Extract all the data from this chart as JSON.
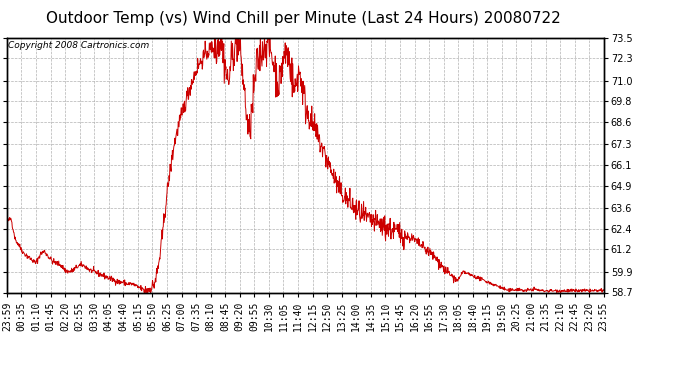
{
  "title": "Outdoor Temp (vs) Wind Chill per Minute (Last 24 Hours) 20080722",
  "copyright_text": "Copyright 2008 Cartronics.com",
  "line_color": "#cc0000",
  "background_color": "#ffffff",
  "plot_bg_color": "#ffffff",
  "grid_color": "#aaaaaa",
  "grid_style": "--",
  "ylim": [
    58.7,
    73.5
  ],
  "yticks": [
    58.7,
    59.9,
    61.2,
    62.4,
    63.6,
    64.9,
    66.1,
    67.3,
    68.6,
    69.8,
    71.0,
    72.3,
    73.5
  ],
  "xtick_labels": [
    "23:59",
    "00:35",
    "01:10",
    "01:45",
    "02:20",
    "02:55",
    "03:30",
    "04:05",
    "04:40",
    "05:15",
    "05:50",
    "06:25",
    "07:00",
    "07:35",
    "08:10",
    "08:45",
    "09:20",
    "09:55",
    "10:30",
    "11:05",
    "11:40",
    "12:15",
    "12:50",
    "13:25",
    "14:00",
    "14:35",
    "15:10",
    "15:45",
    "16:20",
    "16:55",
    "17:30",
    "18:05",
    "18:40",
    "19:15",
    "19:50",
    "20:25",
    "21:00",
    "21:35",
    "22:10",
    "22:45",
    "23:20",
    "23:55"
  ],
  "n_points": 1440,
  "data_profile": [
    [
      0,
      62.8
    ],
    [
      10,
      63.0
    ],
    [
      20,
      61.8
    ],
    [
      30,
      61.4
    ],
    [
      40,
      61.0
    ],
    [
      50,
      60.8
    ],
    [
      60,
      60.6
    ],
    [
      70,
      60.4
    ],
    [
      80,
      60.9
    ],
    [
      90,
      61.1
    ],
    [
      100,
      60.8
    ],
    [
      110,
      60.5
    ],
    [
      120,
      60.4
    ],
    [
      130,
      60.3
    ],
    [
      140,
      60.0
    ],
    [
      150,
      59.9
    ],
    [
      160,
      60.0
    ],
    [
      170,
      60.2
    ],
    [
      180,
      60.3
    ],
    [
      190,
      60.2
    ],
    [
      200,
      60.0
    ],
    [
      210,
      59.9
    ],
    [
      220,
      59.8
    ],
    [
      230,
      59.7
    ],
    [
      240,
      59.6
    ],
    [
      250,
      59.5
    ],
    [
      260,
      59.4
    ],
    [
      270,
      59.3
    ],
    [
      280,
      59.3
    ],
    [
      290,
      59.2
    ],
    [
      300,
      59.2
    ],
    [
      310,
      59.1
    ],
    [
      315,
      59.0
    ],
    [
      320,
      59.0
    ],
    [
      325,
      58.9
    ],
    [
      330,
      58.85
    ],
    [
      335,
      58.8
    ],
    [
      340,
      58.85
    ],
    [
      345,
      58.9
    ],
    [
      350,
      59.0
    ],
    [
      355,
      59.2
    ],
    [
      360,
      59.6
    ],
    [
      365,
      60.2
    ],
    [
      370,
      61.0
    ],
    [
      375,
      62.0
    ],
    [
      380,
      63.2
    ],
    [
      385,
      64.2
    ],
    [
      390,
      65.2
    ],
    [
      395,
      66.0
    ],
    [
      400,
      66.8
    ],
    [
      405,
      67.5
    ],
    [
      410,
      68.0
    ],
    [
      415,
      68.5
    ],
    [
      420,
      68.9
    ],
    [
      425,
      69.3
    ],
    [
      430,
      69.7
    ],
    [
      435,
      70.1
    ],
    [
      440,
      70.5
    ],
    [
      445,
      70.9
    ],
    [
      450,
      71.2
    ],
    [
      455,
      71.5
    ],
    [
      460,
      71.8
    ],
    [
      465,
      72.0
    ],
    [
      470,
      72.2
    ],
    [
      475,
      72.4
    ],
    [
      480,
      72.6
    ],
    [
      485,
      72.7
    ],
    [
      490,
      72.8
    ],
    [
      495,
      72.9
    ],
    [
      500,
      73.0
    ],
    [
      505,
      73.1
    ],
    [
      508,
      73.2
    ],
    [
      510,
      73.3
    ],
    [
      512,
      73.35
    ],
    [
      514,
      73.4
    ],
    [
      516,
      73.3
    ],
    [
      518,
      73.1
    ],
    [
      520,
      72.8
    ],
    [
      522,
      72.5
    ],
    [
      524,
      72.2
    ],
    [
      526,
      71.9
    ],
    [
      528,
      71.6
    ],
    [
      530,
      71.3
    ],
    [
      532,
      71.0
    ],
    [
      534,
      70.8
    ],
    [
      536,
      71.2
    ],
    [
      538,
      71.6
    ],
    [
      540,
      72.0
    ],
    [
      542,
      72.3
    ],
    [
      544,
      72.5
    ],
    [
      546,
      72.7
    ],
    [
      548,
      72.9
    ],
    [
      550,
      73.1
    ],
    [
      552,
      73.2
    ],
    [
      554,
      73.3
    ],
    [
      556,
      73.35
    ],
    [
      558,
      73.3
    ],
    [
      560,
      73.1
    ],
    [
      562,
      72.8
    ],
    [
      564,
      72.4
    ],
    [
      566,
      72.0
    ],
    [
      568,
      71.5
    ],
    [
      570,
      71.0
    ],
    [
      572,
      70.5
    ],
    [
      574,
      70.0
    ],
    [
      576,
      69.5
    ],
    [
      578,
      69.0
    ],
    [
      580,
      68.6
    ],
    [
      582,
      68.2
    ],
    [
      584,
      67.8
    ],
    [
      586,
      68.2
    ],
    [
      588,
      68.6
    ],
    [
      590,
      69.0
    ],
    [
      592,
      69.5
    ],
    [
      594,
      70.0
    ],
    [
      596,
      70.5
    ],
    [
      598,
      71.0
    ],
    [
      600,
      71.4
    ],
    [
      602,
      71.8
    ],
    [
      604,
      72.0
    ],
    [
      606,
      72.2
    ],
    [
      608,
      72.4
    ],
    [
      610,
      72.5
    ],
    [
      612,
      72.6
    ],
    [
      614,
      72.7
    ],
    [
      616,
      72.8
    ],
    [
      618,
      72.9
    ],
    [
      620,
      73.0
    ],
    [
      622,
      73.1
    ],
    [
      624,
      73.2
    ],
    [
      626,
      73.3
    ],
    [
      628,
      73.35
    ],
    [
      630,
      73.3
    ],
    [
      632,
      73.1
    ],
    [
      634,
      72.9
    ],
    [
      636,
      72.7
    ],
    [
      638,
      72.5
    ],
    [
      640,
      72.3
    ],
    [
      642,
      72.1
    ],
    [
      644,
      71.9
    ],
    [
      646,
      71.7
    ],
    [
      648,
      71.5
    ],
    [
      650,
      71.3
    ],
    [
      652,
      71.1
    ],
    [
      654,
      70.9
    ],
    [
      656,
      70.8
    ],
    [
      658,
      71.0
    ],
    [
      660,
      71.3
    ],
    [
      662,
      71.6
    ],
    [
      664,
      71.9
    ],
    [
      666,
      72.1
    ],
    [
      668,
      72.3
    ],
    [
      670,
      72.5
    ],
    [
      672,
      72.6
    ],
    [
      674,
      72.7
    ],
    [
      676,
      72.6
    ],
    [
      678,
      72.4
    ],
    [
      680,
      72.2
    ],
    [
      682,
      72.0
    ],
    [
      684,
      71.8
    ],
    [
      686,
      71.5
    ],
    [
      688,
      71.2
    ],
    [
      690,
      70.9
    ],
    [
      692,
      70.6
    ],
    [
      694,
      70.4
    ],
    [
      696,
      70.6
    ],
    [
      698,
      70.9
    ],
    [
      700,
      71.2
    ],
    [
      702,
      71.4
    ],
    [
      704,
      71.5
    ],
    [
      706,
      71.4
    ],
    [
      708,
      71.2
    ],
    [
      710,
      71.0
    ],
    [
      712,
      70.7
    ],
    [
      714,
      70.4
    ],
    [
      716,
      70.1
    ],
    [
      718,
      69.8
    ],
    [
      720,
      69.5
    ],
    [
      725,
      69.2
    ],
    [
      730,
      68.9
    ],
    [
      735,
      68.6
    ],
    [
      740,
      68.3
    ],
    [
      745,
      68.0
    ],
    [
      750,
      67.7
    ],
    [
      755,
      67.4
    ],
    [
      760,
      67.1
    ],
    [
      765,
      66.8
    ],
    [
      770,
      66.5
    ],
    [
      775,
      66.2
    ],
    [
      780,
      65.9
    ],
    [
      785,
      65.6
    ],
    [
      790,
      65.3
    ],
    [
      795,
      65.0
    ],
    [
      800,
      64.7
    ],
    [
      810,
      64.4
    ],
    [
      820,
      64.1
    ],
    [
      830,
      63.8
    ],
    [
      840,
      63.5
    ],
    [
      850,
      63.3
    ],
    [
      860,
      63.1
    ],
    [
      870,
      62.9
    ],
    [
      880,
      62.8
    ],
    [
      890,
      62.7
    ],
    [
      900,
      62.6
    ],
    [
      910,
      62.5
    ],
    [
      920,
      62.4
    ],
    [
      930,
      62.3
    ],
    [
      940,
      62.2
    ],
    [
      950,
      62.1
    ],
    [
      960,
      62.0
    ],
    [
      970,
      61.9
    ],
    [
      980,
      61.8
    ],
    [
      990,
      61.6
    ],
    [
      1000,
      61.4
    ],
    [
      1010,
      61.2
    ],
    [
      1020,
      61.0
    ],
    [
      1030,
      60.8
    ],
    [
      1040,
      60.5
    ],
    [
      1050,
      60.2
    ],
    [
      1060,
      59.9
    ],
    [
      1070,
      59.7
    ],
    [
      1075,
      59.6
    ],
    [
      1080,
      59.5
    ],
    [
      1085,
      59.4
    ],
    [
      1090,
      59.5
    ],
    [
      1095,
      59.7
    ],
    [
      1100,
      59.9
    ],
    [
      1110,
      59.8
    ],
    [
      1120,
      59.7
    ],
    [
      1130,
      59.6
    ],
    [
      1140,
      59.5
    ],
    [
      1150,
      59.4
    ],
    [
      1160,
      59.3
    ],
    [
      1170,
      59.2
    ],
    [
      1180,
      59.1
    ],
    [
      1190,
      59.0
    ],
    [
      1200,
      58.9
    ],
    [
      1210,
      58.8
    ],
    [
      1220,
      58.85
    ],
    [
      1230,
      58.9
    ],
    [
      1240,
      58.85
    ],
    [
      1250,
      58.8
    ],
    [
      1260,
      58.85
    ],
    [
      1270,
      58.9
    ],
    [
      1280,
      58.85
    ],
    [
      1290,
      58.8
    ],
    [
      1300,
      58.8
    ],
    [
      1310,
      58.8
    ],
    [
      1320,
      58.8
    ],
    [
      1330,
      58.8
    ],
    [
      1340,
      58.8
    ],
    [
      1350,
      58.8
    ],
    [
      1360,
      58.8
    ],
    [
      1370,
      58.8
    ],
    [
      1380,
      58.8
    ],
    [
      1390,
      58.8
    ],
    [
      1400,
      58.8
    ],
    [
      1410,
      58.8
    ],
    [
      1420,
      58.8
    ],
    [
      1430,
      58.8
    ],
    [
      1439,
      58.8
    ]
  ],
  "title_fontsize": 11,
  "tick_fontsize": 7,
  "copyright_fontsize": 6.5
}
